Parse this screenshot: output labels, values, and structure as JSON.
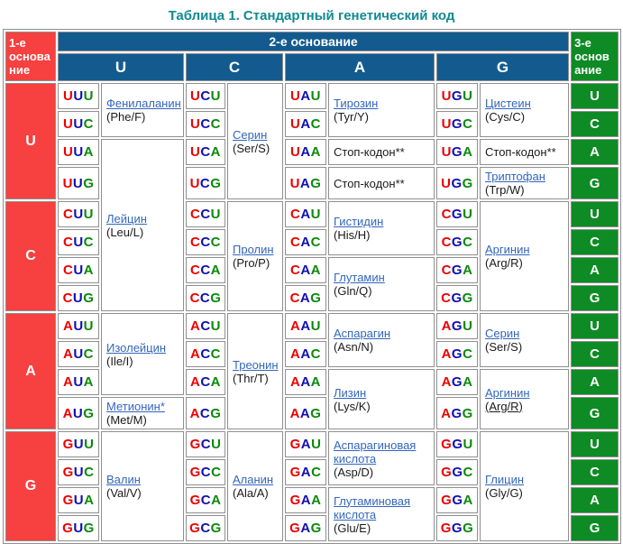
{
  "title": "Таблица 1. Стандартный генетический код",
  "header": {
    "first_base": "1-е основание",
    "second_base": "2-е основание",
    "third_base": "3-е основание",
    "second_letters": [
      "U",
      "C",
      "A",
      "G"
    ]
  },
  "row_groups": [
    "U",
    "C",
    "A",
    "G"
  ],
  "third_letters": [
    "U",
    "C",
    "A",
    "G"
  ],
  "codons": {
    "U_row": {
      "U": [
        "UUU",
        "UUC",
        "UUA",
        "UUG"
      ],
      "C": [
        "UCU",
        "UCC",
        "UCA",
        "UCG"
      ],
      "A": [
        "UAU",
        "UAC",
        "UAA",
        "UAG"
      ],
      "G": [
        "UGU",
        "UGC",
        "UGA",
        "UGG"
      ]
    },
    "C_row": {
      "U": [
        "CUU",
        "CUC",
        "CUA",
        "CUG"
      ],
      "C": [
        "CCU",
        "CCC",
        "CCA",
        "CCG"
      ],
      "A": [
        "CAU",
        "CAC",
        "CAA",
        "CAG"
      ],
      "G": [
        "CGU",
        "CGC",
        "CGA",
        "CGG"
      ]
    },
    "A_row": {
      "U": [
        "AUU",
        "AUC",
        "AUA",
        "AUG"
      ],
      "C": [
        "ACU",
        "ACC",
        "ACA",
        "ACG"
      ],
      "A": [
        "AAU",
        "AAC",
        "AAA",
        "AAG"
      ],
      "G": [
        "AGU",
        "AGC",
        "AGA",
        "AGG"
      ]
    },
    "G_row": {
      "U": [
        "GUU",
        "GUC",
        "GUA",
        "GUG"
      ],
      "C": [
        "GCU",
        "GCC",
        "GCA",
        "GCG"
      ],
      "A": [
        "GAU",
        "GAC",
        "GAA",
        "GAG"
      ],
      "G": [
        "GGU",
        "GGC",
        "GGA",
        "GGG"
      ]
    }
  },
  "aminos": {
    "phe": {
      "name": "Фенилаланин",
      "code": "(Phe/F)"
    },
    "leu": {
      "name": "Лейцин",
      "code": "(Leu/L)"
    },
    "ser": {
      "name": "Серин",
      "code": "(Ser/S)"
    },
    "tyr": {
      "name": "Тирозин",
      "code": "(Tyr/Y)"
    },
    "cys": {
      "name": "Цистеин",
      "code": "(Cys/C)"
    },
    "trp": {
      "name": "Триптофан",
      "code": "(Trp/W)"
    },
    "pro": {
      "name": "Пролин",
      "code": "(Pro/P)"
    },
    "his": {
      "name": "Гистидин",
      "code": "(His/H)"
    },
    "gln": {
      "name": "Глутамин",
      "code": "(Gln/Q)"
    },
    "arg": {
      "name": "Аргинин",
      "code": "(Arg/R)"
    },
    "ile": {
      "name": "Изолейцин",
      "code": "(Ile/I)"
    },
    "met": {
      "name": "Метионин*",
      "code": "(Met/M)"
    },
    "thr": {
      "name": "Треонин",
      "code": "(Thr/T)"
    },
    "asn": {
      "name": "Аспарагин",
      "code": "(Asn/N)"
    },
    "lys": {
      "name": "Лизин",
      "code": "(Lys/K)"
    },
    "ser2": {
      "name": "Серин",
      "code": "(Ser/S)"
    },
    "arg2": {
      "name": "Аргинин",
      "code": "(Arg/R)"
    },
    "val": {
      "name": "Валин",
      "code": "(Val/V)"
    },
    "ala": {
      "name": "Аланин",
      "code": "(Ala/A)"
    },
    "asp": {
      "name": "Аспарагиновая кислота",
      "code": "(Asp/D)"
    },
    "glu": {
      "name": "Глутаминовая кислота",
      "code": "(Glu/E)"
    },
    "gly": {
      "name": "Глицин",
      "code": "(Gly/G)"
    }
  },
  "labels": {
    "stop": "Стоп-кодон**"
  },
  "colors": {
    "title_text": "#108a92",
    "first_base_bg": "#f74040",
    "second_base_bg": "#135b8f",
    "third_base_bg": "#0e8b24",
    "nucleotide_pos1": "#ee0000",
    "nucleotide_pos2": "#0f0fb4",
    "nucleotide_pos3": "#0a8a0a",
    "amino_link": "#3366bb"
  }
}
